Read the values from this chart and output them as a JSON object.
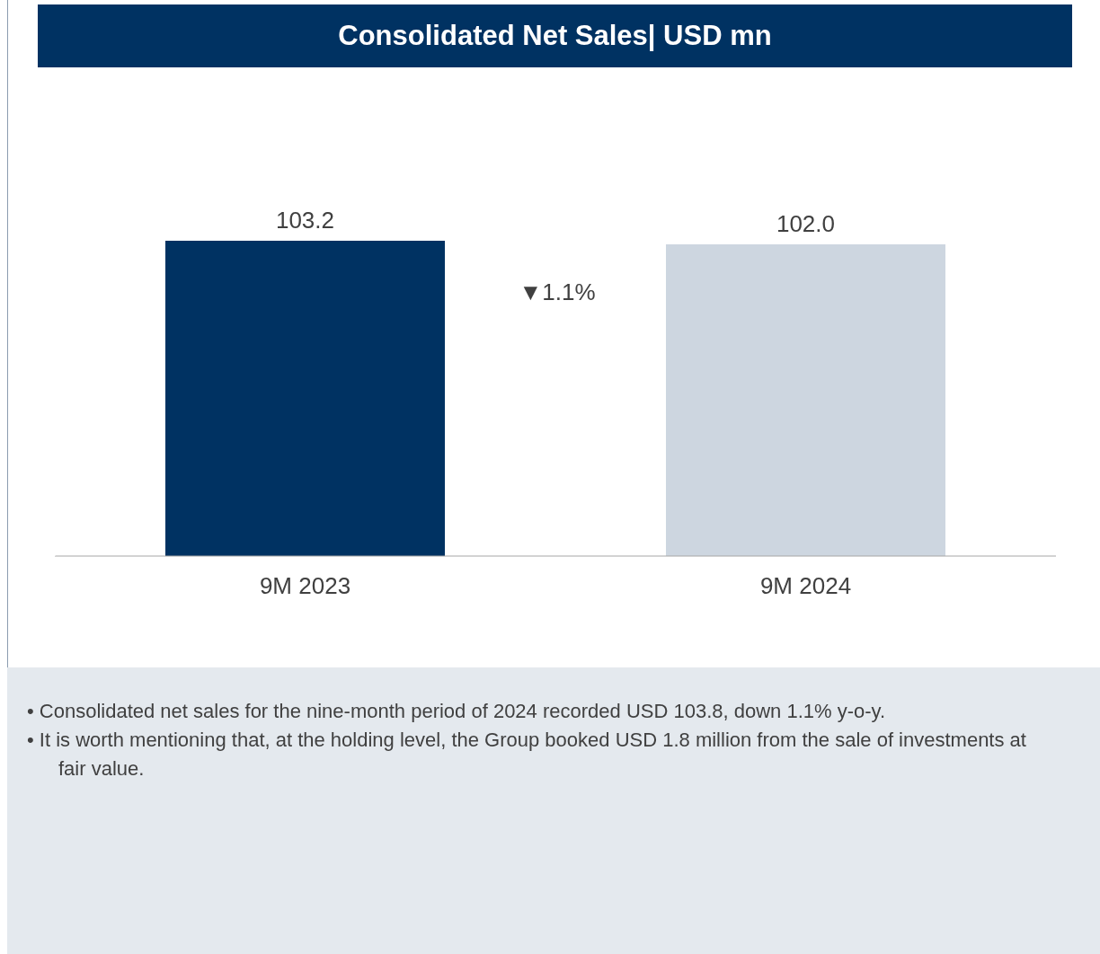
{
  "chart_data": {
    "type": "bar",
    "title": "Consolidated Net Sales| USD mn",
    "categories": [
      "9M 2023",
      "9M 2024"
    ],
    "values": [
      103.2,
      102.0
    ],
    "colors": [
      "#003262",
      "#cdd6e0"
    ],
    "value_labels": [
      "103.2",
      "102.0"
    ],
    "annotations": [
      "▼1.1%",
      "• Consolidated net sales for the nine-month period of 2024 recorded USD 103.8, down 1.1% y-o-y.",
      "• It is worth mentioning that, at the holding level, the Group booked USD 1.8 million from the sale of investments at fair value."
    ]
  }
}
